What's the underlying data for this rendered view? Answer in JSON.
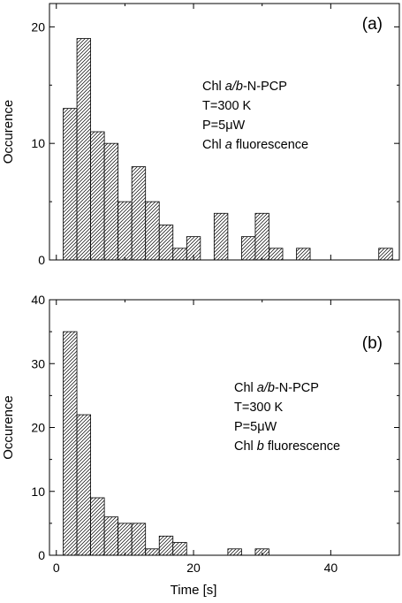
{
  "chart_data": [
    {
      "type": "bar",
      "panel_label": "(a)",
      "title": "",
      "xlabel": "",
      "ylabel": "Occurence",
      "xlim": [
        -1,
        50
      ],
      "ylim": [
        0,
        22
      ],
      "x_ticks": [
        0,
        20,
        40
      ],
      "y_ticks": [
        0,
        10,
        20
      ],
      "x_tick_labels_shown": false,
      "bin_width": 2,
      "grid": false,
      "legend": "none",
      "bars": [
        {
          "x_start": 1,
          "value": 13
        },
        {
          "x_start": 3,
          "value": 19
        },
        {
          "x_start": 5,
          "value": 11
        },
        {
          "x_start": 7,
          "value": 10
        },
        {
          "x_start": 9,
          "value": 5
        },
        {
          "x_start": 11,
          "value": 8
        },
        {
          "x_start": 13,
          "value": 5
        },
        {
          "x_start": 15,
          "value": 3
        },
        {
          "x_start": 17,
          "value": 1
        },
        {
          "x_start": 19,
          "value": 2
        },
        {
          "x_start": 23,
          "value": 4
        },
        {
          "x_start": 27,
          "value": 2
        },
        {
          "x_start": 29,
          "value": 4
        },
        {
          "x_start": 31,
          "value": 1
        },
        {
          "x_start": 35,
          "value": 1
        },
        {
          "x_start": 47,
          "value": 1
        }
      ],
      "annotation": {
        "line1_prefix": "Chl ",
        "line1_italic": "a/b",
        "line1_suffix": "-N-PCP",
        "line2": "T=300 K",
        "line3": "P=5μW",
        "line4_prefix": "Chl ",
        "line4_italic": "a",
        "line4_suffix": " fluorescence"
      }
    },
    {
      "type": "bar",
      "panel_label": "(b)",
      "title": "",
      "xlabel": "Time [s]",
      "ylabel": "Occurence",
      "xlim": [
        -1,
        50
      ],
      "ylim": [
        0,
        40
      ],
      "x_ticks": [
        0,
        20,
        40
      ],
      "y_ticks": [
        0,
        10,
        20,
        30,
        40
      ],
      "x_tick_labels_shown": true,
      "bin_width": 2,
      "grid": false,
      "legend": "none",
      "bars": [
        {
          "x_start": 1,
          "value": 35
        },
        {
          "x_start": 3,
          "value": 22
        },
        {
          "x_start": 5,
          "value": 9
        },
        {
          "x_start": 7,
          "value": 6
        },
        {
          "x_start": 9,
          "value": 5
        },
        {
          "x_start": 11,
          "value": 5
        },
        {
          "x_start": 13,
          "value": 1
        },
        {
          "x_start": 15,
          "value": 3
        },
        {
          "x_start": 17,
          "value": 2
        },
        {
          "x_start": 25,
          "value": 1
        },
        {
          "x_start": 29,
          "value": 1
        }
      ],
      "annotation": {
        "line1_prefix": "Chl ",
        "line1_italic": "a/b",
        "line1_suffix": "-N-PCP",
        "line2": "T=300 K",
        "line3": "P=5μW",
        "line4_prefix": "Chl ",
        "line4_italic": "b",
        "line4_suffix": " fluorescence"
      }
    }
  ]
}
